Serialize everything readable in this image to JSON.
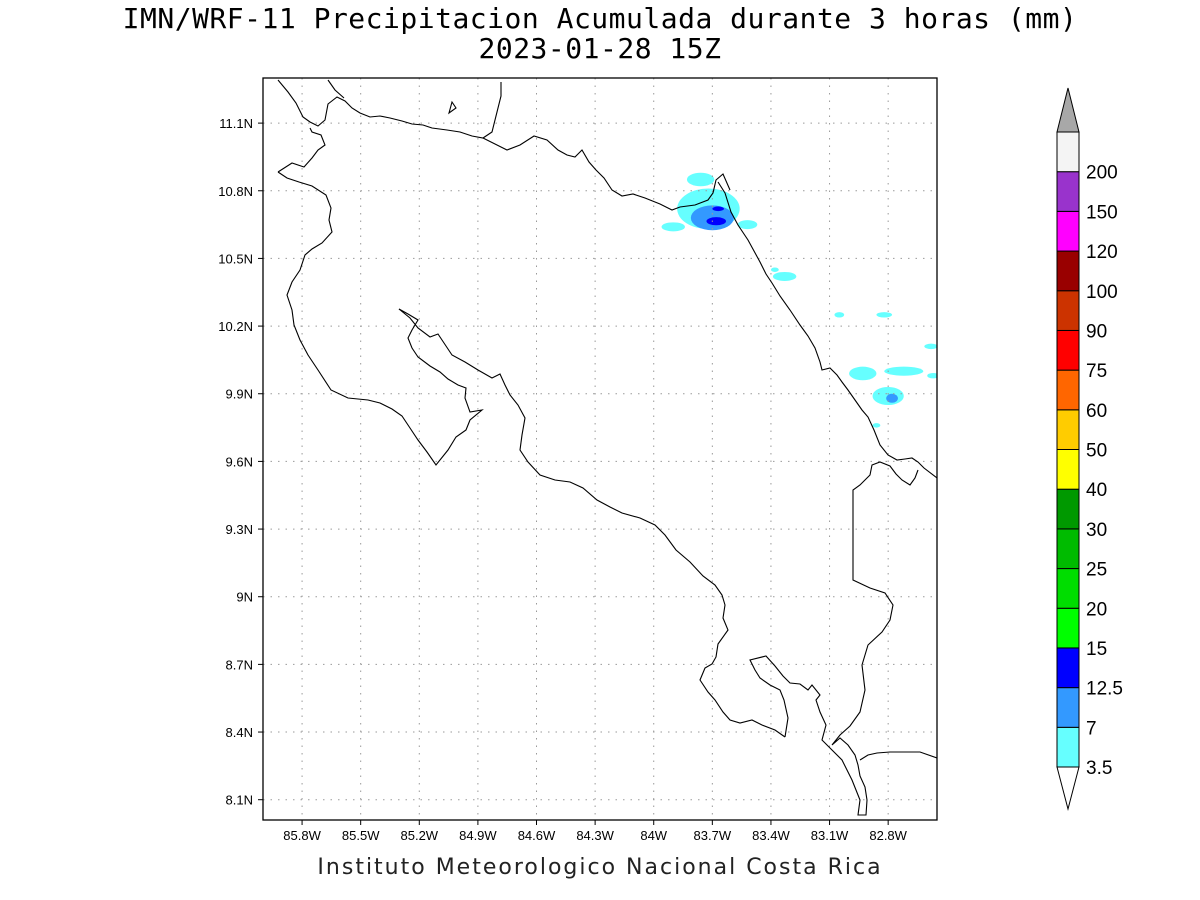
{
  "title_line1": "IMN/WRF-11 Precipitacion Acumulada durante 3 horas (mm)",
  "title_line2": "2023-01-28 15Z",
  "footer": "Instituto Meteorologico Nacional Costa Rica",
  "map": {
    "lon_range": [
      -86.0,
      -82.55
    ],
    "lat_range": [
      8.01,
      11.3
    ],
    "lon_ticks": [
      {
        "v": -85.8,
        "label": "85.8W"
      },
      {
        "v": -85.5,
        "label": "85.5W"
      },
      {
        "v": -85.2,
        "label": "85.2W"
      },
      {
        "v": -84.9,
        "label": "84.9W"
      },
      {
        "v": -84.6,
        "label": "84.6W"
      },
      {
        "v": -84.3,
        "label": "84.3W"
      },
      {
        "v": -84.0,
        "label": "84W"
      },
      {
        "v": -83.7,
        "label": "83.7W"
      },
      {
        "v": -83.4,
        "label": "83.4W"
      },
      {
        "v": -83.1,
        "label": "83.1W"
      },
      {
        "v": -82.8,
        "label": "82.8W"
      }
    ],
    "lat_ticks": [
      {
        "v": 11.1,
        "label": "11.1N"
      },
      {
        "v": 10.8,
        "label": "10.8N"
      },
      {
        "v": 10.5,
        "label": "10.5N"
      },
      {
        "v": 10.2,
        "label": "10.2N"
      },
      {
        "v": 9.9,
        "label": "9.9N"
      },
      {
        "v": 9.6,
        "label": "9.6N"
      },
      {
        "v": 9.3,
        "label": "9.3N"
      },
      {
        "v": 9.0,
        "label": "9N"
      },
      {
        "v": 8.7,
        "label": "8.7N"
      },
      {
        "v": 8.4,
        "label": "8.4N"
      },
      {
        "v": 8.1,
        "label": "8.1N"
      }
    ],
    "grid": true,
    "precipitation_areas": [
      {
        "level": "3.5",
        "color": "#66ffff",
        "lon": -83.72,
        "lat": 10.72,
        "rlon": 0.16,
        "rlat": 0.09
      },
      {
        "level": "3.5",
        "color": "#66ffff",
        "lon": -83.76,
        "lat": 10.85,
        "rlon": 0.07,
        "rlat": 0.03
      },
      {
        "level": "3.5",
        "color": "#66ffff",
        "lon": -83.9,
        "lat": 10.64,
        "rlon": 0.06,
        "rlat": 0.02
      },
      {
        "level": "3.5",
        "color": "#66ffff",
        "lon": -83.52,
        "lat": 10.65,
        "rlon": 0.05,
        "rlat": 0.02
      },
      {
        "level": "3.5",
        "color": "#66ffff",
        "lon": -83.33,
        "lat": 10.42,
        "rlon": 0.06,
        "rlat": 0.02
      },
      {
        "level": "3.5",
        "color": "#66ffff",
        "lon": -83.38,
        "lat": 10.45,
        "rlon": 0.02,
        "rlat": 0.01
      },
      {
        "level": "3.5",
        "color": "#66ffff",
        "lon": -83.05,
        "lat": 10.25,
        "rlon": 0.025,
        "rlat": 0.012
      },
      {
        "level": "3.5",
        "color": "#66ffff",
        "lon": -82.82,
        "lat": 10.25,
        "rlon": 0.04,
        "rlat": 0.012
      },
      {
        "level": "3.5",
        "color": "#66ffff",
        "lon": -82.58,
        "lat": 10.11,
        "rlon": 0.035,
        "rlat": 0.012
      },
      {
        "level": "3.5",
        "color": "#66ffff",
        "lon": -82.72,
        "lat": 10.0,
        "rlon": 0.1,
        "rlat": 0.02
      },
      {
        "level": "3.5",
        "color": "#66ffff",
        "lon": -82.93,
        "lat": 9.99,
        "rlon": 0.07,
        "rlat": 0.03
      },
      {
        "level": "3.5",
        "color": "#66ffff",
        "lon": -82.8,
        "lat": 9.89,
        "rlon": 0.08,
        "rlat": 0.04
      },
      {
        "level": "3.5",
        "color": "#66ffff",
        "lon": -82.57,
        "lat": 9.98,
        "rlon": 0.03,
        "rlat": 0.012
      },
      {
        "level": "3.5",
        "color": "#66ffff",
        "lon": -82.86,
        "lat": 9.76,
        "rlon": 0.02,
        "rlat": 0.01
      },
      {
        "level": "7",
        "color": "#3399ff",
        "lon": -83.7,
        "lat": 10.68,
        "rlon": 0.11,
        "rlat": 0.055
      },
      {
        "level": "7",
        "color": "#3399ff",
        "lon": -82.78,
        "lat": 9.88,
        "rlon": 0.03,
        "rlat": 0.02
      },
      {
        "level": "12.5",
        "color": "#0000ff",
        "lon": -83.68,
        "lat": 10.665,
        "rlon": 0.05,
        "rlat": 0.018
      },
      {
        "level": "12.5",
        "color": "#0000ff",
        "lon": -83.67,
        "lat": 10.72,
        "rlon": 0.03,
        "rlat": 0.01
      }
    ]
  },
  "colorbar": {
    "levels": [
      {
        "label": "3.5",
        "color": "#66ffff"
      },
      {
        "label": "7",
        "color": "#3399ff"
      },
      {
        "label": "12.5",
        "color": "#0000ff"
      },
      {
        "label": "15",
        "color": "#00ff00"
      },
      {
        "label": "20",
        "color": "#00dd00"
      },
      {
        "label": "25",
        "color": "#00bb00"
      },
      {
        "label": "30",
        "color": "#009900"
      },
      {
        "label": "40",
        "color": "#ffff00"
      },
      {
        "label": "50",
        "color": "#ffcc00"
      },
      {
        "label": "60",
        "color": "#ff6600"
      },
      {
        "label": "75",
        "color": "#ff0000"
      },
      {
        "label": "90",
        "color": "#cc3300"
      },
      {
        "label": "100",
        "color": "#990000"
      },
      {
        "label": "120",
        "color": "#ff00ff"
      },
      {
        "label": "150",
        "color": "#9933cc"
      },
      {
        "label": "200",
        "color": "#f4f4f4"
      }
    ],
    "low_extend_color": "#ffffff",
    "high_extend_color": "#a8a8a8"
  }
}
